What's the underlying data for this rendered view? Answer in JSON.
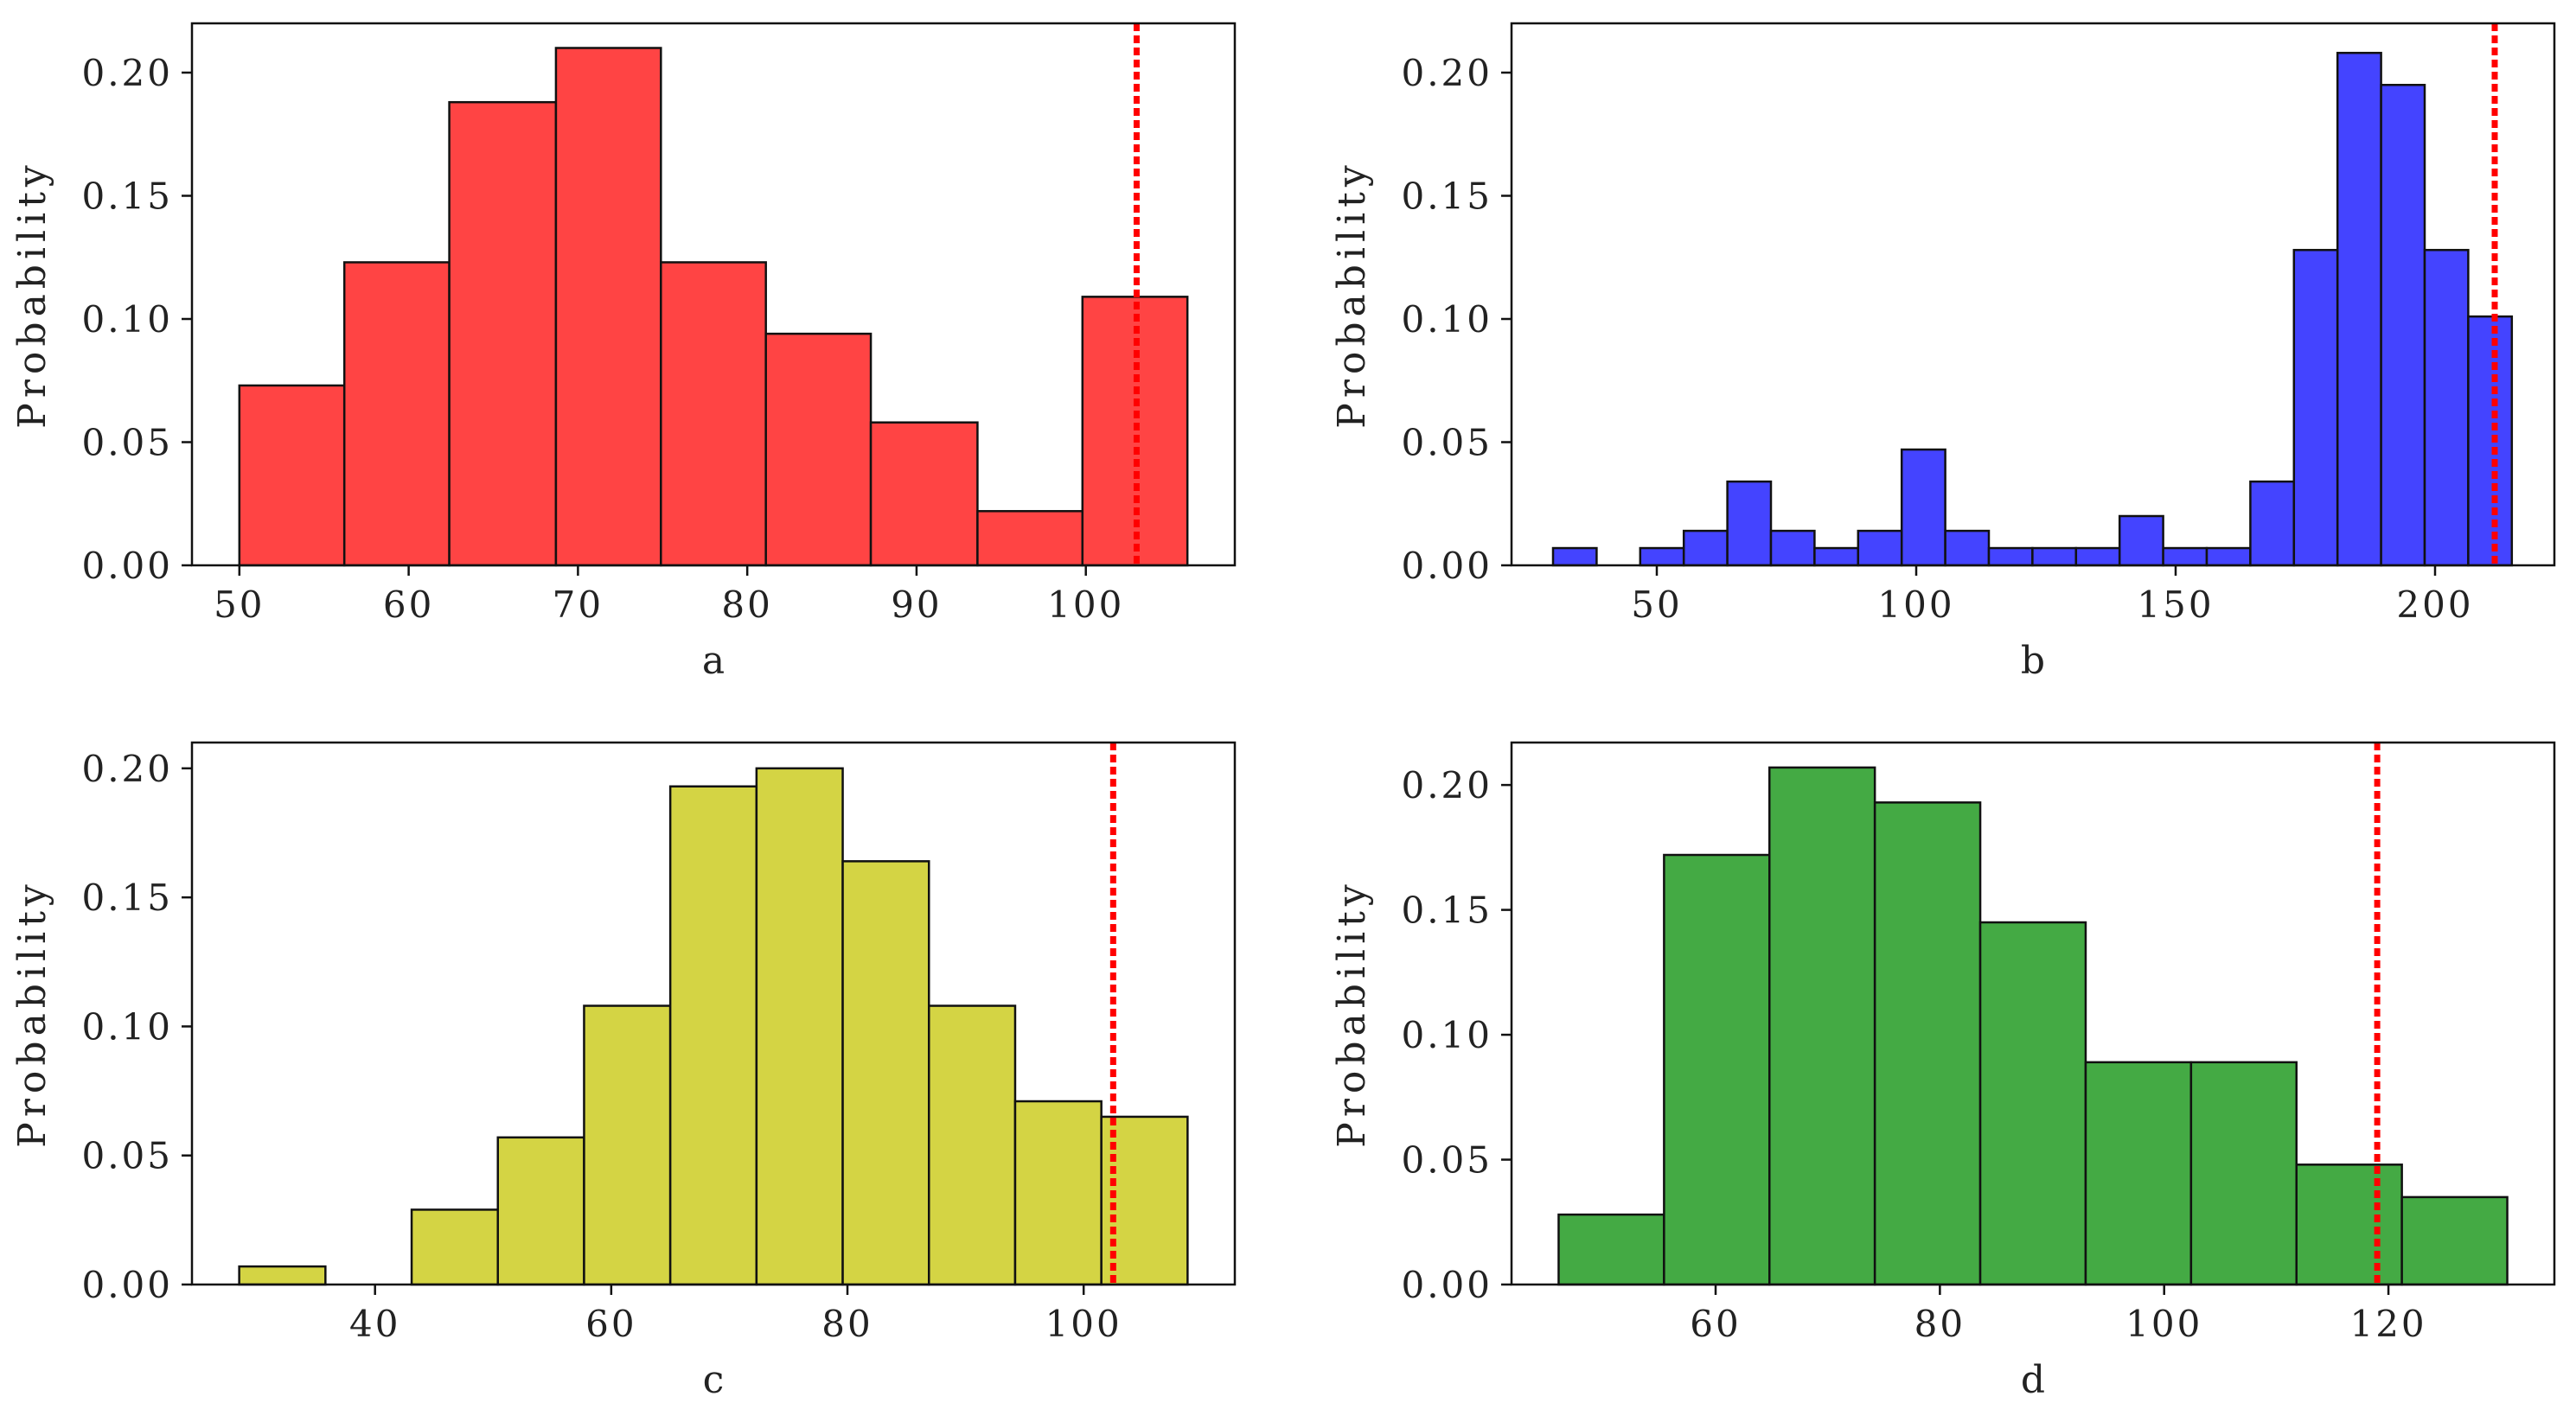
{
  "chart_data": [
    {
      "type": "histogram",
      "panel": "a",
      "xlabel": "a",
      "ylabel": "Probability",
      "color": "#ff4444",
      "bin_edges": [
        50,
        56.2,
        62.4,
        68.7,
        74.9,
        81.1,
        87.3,
        93.6,
        99.8,
        106
      ],
      "values": [
        0.073,
        0.123,
        0.188,
        0.21,
        0.123,
        0.094,
        0.058,
        0.022,
        0.109
      ],
      "xlim": [
        47.2,
        108.8
      ],
      "ylim": [
        0,
        0.22
      ],
      "xticks": [
        50,
        60,
        70,
        80,
        90,
        100
      ],
      "xtick_labels": [
        "50",
        "60",
        "70",
        "80",
        "90",
        "100"
      ],
      "yticks": [
        0,
        0.05,
        0.1,
        0.15,
        0.2
      ],
      "ytick_labels": [
        "0.00",
        "0.05",
        "0.10",
        "0.15",
        "0.20"
      ],
      "threshold": 103,
      "threshold_color": "#ff0000"
    },
    {
      "type": "histogram",
      "panel": "b",
      "xlabel": "b",
      "ylabel": "Probability",
      "color": "#4444ff",
      "bin_edges": [
        30,
        38.4,
        46.8,
        55.2,
        63.6,
        72,
        80.4,
        88.8,
        97.2,
        105.6,
        114,
        122.4,
        130.8,
        139.2,
        147.6,
        156,
        164.4,
        172.8,
        181.2,
        189.6,
        198,
        206.4,
        214.8
      ],
      "values": [
        0.007,
        0.0,
        0.007,
        0.014,
        0.034,
        0.014,
        0.007,
        0.014,
        0.047,
        0.014,
        0.007,
        0.007,
        0.007,
        0.02,
        0.007,
        0.007,
        0.034,
        0.128,
        0.208,
        0.195,
        0.128,
        0.101
      ],
      "xlim": [
        22,
        223
      ],
      "ylim": [
        0,
        0.22
      ],
      "xticks": [
        50,
        100,
        150,
        200
      ],
      "xtick_labels": [
        "50",
        "100",
        "150",
        "200"
      ],
      "yticks": [
        0,
        0.05,
        0.1,
        0.15,
        0.2
      ],
      "ytick_labels": [
        "0.00",
        "0.05",
        "0.10",
        "0.15",
        "0.20"
      ],
      "threshold": 211.5,
      "threshold_color": "#ff0000"
    },
    {
      "type": "histogram",
      "panel": "c",
      "xlabel": "c",
      "ylabel": "Probability",
      "color": "#d4d444",
      "bin_edges": [
        28.5,
        35.8,
        43.1,
        50.4,
        57.7,
        65,
        72.3,
        79.6,
        86.9,
        94.2,
        101.5,
        108.8
      ],
      "values": [
        0.007,
        0.0,
        0.029,
        0.057,
        0.108,
        0.193,
        0.2,
        0.164,
        0.108,
        0.071,
        0.065
      ],
      "xlim": [
        24.5,
        112.8
      ],
      "ylim": [
        0,
        0.21
      ],
      "xticks": [
        40,
        60,
        80,
        100
      ],
      "xtick_labels": [
        "40",
        "60",
        "80",
        "100"
      ],
      "yticks": [
        0,
        0.05,
        0.1,
        0.15,
        0.2
      ],
      "ytick_labels": [
        "0.00",
        "0.05",
        "0.10",
        "0.15",
        "0.20"
      ],
      "threshold": 102.5,
      "threshold_color": "#ff0000"
    },
    {
      "type": "histogram",
      "panel": "d",
      "xlabel": "d",
      "ylabel": "Probability",
      "color": "#44aa44",
      "bin_edges": [
        46,
        55.4,
        64.8,
        74.2,
        83.6,
        93,
        102.4,
        111.8,
        121.2,
        130.6
      ],
      "values": [
        0.028,
        0.172,
        0.207,
        0.193,
        0.145,
        0.089,
        0.089,
        0.048,
        0.035
      ],
      "xlim": [
        41.8,
        134.8
      ],
      "ylim": [
        0,
        0.217
      ],
      "xticks": [
        60,
        80,
        100,
        120
      ],
      "xtick_labels": [
        "60",
        "80",
        "100",
        "120"
      ],
      "yticks": [
        0,
        0.05,
        0.1,
        0.15,
        0.2
      ],
      "ytick_labels": [
        "0.00",
        "0.05",
        "0.10",
        "0.15",
        "0.20"
      ],
      "threshold": 119,
      "threshold_color": "#ff0000"
    }
  ]
}
